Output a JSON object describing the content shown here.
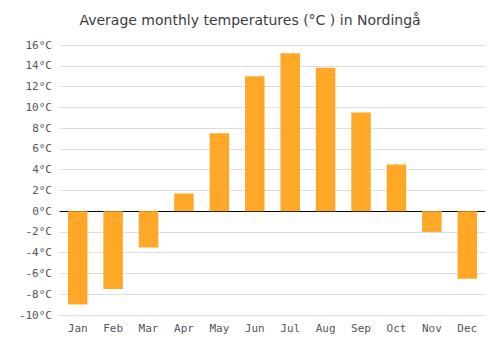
{
  "chart_data": {
    "type": "bar",
    "title": "Average monthly temperatures (°C ) in Nordingå",
    "categories": [
      "Jan",
      "Feb",
      "Mar",
      "Apr",
      "May",
      "Jun",
      "Jul",
      "Aug",
      "Sep",
      "Oct",
      "Nov",
      "Dec"
    ],
    "values": [
      -9.0,
      -7.5,
      -3.5,
      1.7,
      7.5,
      13.0,
      15.2,
      13.8,
      9.5,
      4.5,
      -2.0,
      -6.5
    ],
    "color": "#FFA726",
    "ylim": [
      -10,
      16
    ],
    "yticks": [
      {
        "value": -10,
        "label": "-10°C"
      },
      {
        "value": -8,
        "label": "-8°C"
      },
      {
        "value": -6,
        "label": "-6°C"
      },
      {
        "value": -4,
        "label": "-4°C"
      },
      {
        "value": -2,
        "label": "-2°C"
      },
      {
        "value": 0,
        "label": "0°C"
      },
      {
        "value": 2,
        "label": "2°C"
      },
      {
        "value": 4,
        "label": "4°C"
      },
      {
        "value": 6,
        "label": "6°C"
      },
      {
        "value": 8,
        "label": "8°C"
      },
      {
        "value": 10,
        "label": "10°C"
      },
      {
        "value": 12,
        "label": "12°C"
      },
      {
        "value": 14,
        "label": "14°C"
      },
      {
        "value": 16,
        "label": "16°C"
      }
    ],
    "grid": true
  }
}
